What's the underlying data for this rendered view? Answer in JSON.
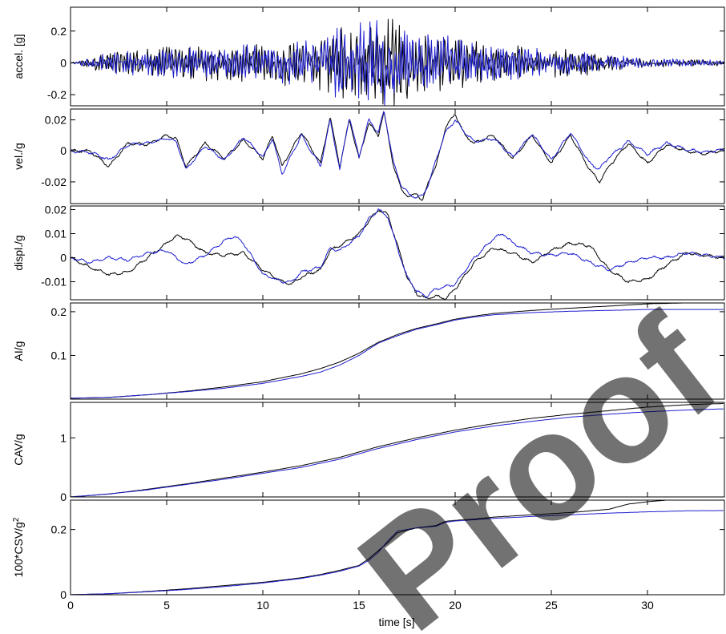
{
  "watermark": "Proof of SI",
  "colors": {
    "record": "#000000",
    "simulated": "#1f1fd0",
    "axes": "#000000"
  },
  "chart_data": {
    "type": "line",
    "shared_x": {
      "label": "time [s]",
      "range": [
        0,
        34
      ],
      "ticks": [
        0,
        5,
        10,
        15,
        20,
        25,
        30
      ],
      "tick_labels": [
        "0",
        "5",
        "10",
        "15",
        "20",
        "25",
        "30"
      ]
    },
    "grid": false,
    "legend": "none",
    "panels": [
      {
        "id": "accel",
        "ylabel": "accel. [g]",
        "ylim": [
          -0.27,
          0.35
        ],
        "yticks": [
          -0.2,
          0,
          0.2
        ],
        "ytick_labels": [
          "-0.2",
          "0",
          "0.2"
        ],
        "kind": "oscillatory",
        "series": [
          {
            "color_key": "record",
            "x": [
              0,
              2,
              4,
              6,
              8,
              10,
              12,
              14,
              15,
              16,
              16.5,
              17,
              18,
              20,
              22,
              24,
              26,
              28,
              30,
              32,
              34
            ],
            "y": [
              0,
              0.08,
              0.1,
              0.12,
              0.12,
              0.15,
              0.16,
              0.25,
              0.28,
              0.3,
              0.35,
              0.3,
              0.22,
              0.2,
              0.15,
              0.12,
              0.1,
              0.06,
              0.04,
              0.03,
              0.02
            ]
          },
          {
            "color_key": "simulated",
            "x": [
              0,
              2,
              4,
              6,
              8,
              10,
              12,
              14,
              15,
              16,
              16.5,
              17,
              18,
              20,
              22,
              24,
              26,
              28,
              30,
              32,
              34
            ],
            "y": [
              0,
              0.07,
              0.09,
              0.11,
              0.11,
              0.14,
              0.16,
              0.24,
              0.3,
              0.33,
              0.3,
              0.27,
              0.2,
              0.18,
              0.14,
              0.11,
              0.09,
              0.05,
              0.04,
              0.03,
              0.02
            ]
          }
        ]
      },
      {
        "id": "vel",
        "ylabel": "vel./g",
        "ylim": [
          -0.034,
          0.027
        ],
        "yticks": [
          -0.02,
          0,
          0.02
        ],
        "ytick_labels": [
          "-0.02",
          "0",
          "0.02"
        ],
        "kind": "smooth",
        "series": [
          {
            "color_key": "record",
            "x": [
              0,
              1,
              1.5,
              2,
              3,
              4,
              5,
              5.5,
              6,
              7,
              8,
              9,
              10,
              10.5,
              11,
              12,
              13,
              13.5,
              14,
              14.5,
              15,
              15.5,
              16,
              16.3,
              16.8,
              17.2,
              17.6,
              18,
              18.3,
              18.6,
              19,
              19.5,
              20,
              20.5,
              21,
              22,
              23,
              24,
              25,
              26,
              27,
              27.5,
              28,
              29,
              30,
              31,
              32,
              33,
              34
            ],
            "y": [
              0,
              0,
              -0.005,
              -0.01,
              0.005,
              0.004,
              0.01,
              0.008,
              -0.01,
              0.005,
              -0.005,
              0.007,
              -0.005,
              0.01,
              -0.01,
              0.012,
              -0.008,
              0.022,
              -0.01,
              0.02,
              -0.005,
              0.018,
              0.01,
              0.025,
              -0.01,
              -0.025,
              -0.03,
              -0.027,
              -0.033,
              -0.02,
              -0.01,
              0.015,
              0.024,
              0.01,
              0.005,
              0.01,
              -0.005,
              0.01,
              -0.008,
              0.01,
              -0.012,
              -0.02,
              -0.01,
              0.005,
              -0.008,
              0.004,
              0,
              -0.002,
              0.001
            ]
          },
          {
            "color_key": "simulated",
            "x": [
              0,
              1,
              1.5,
              2,
              3,
              4,
              5,
              5.5,
              6,
              7,
              8,
              9,
              10,
              10.5,
              11,
              12,
              13,
              13.5,
              14,
              14.5,
              15,
              15.5,
              16,
              16.3,
              16.8,
              17.2,
              17.6,
              18,
              18.3,
              18.6,
              19,
              19.5,
              20,
              20.5,
              21,
              22,
              23,
              24,
              25,
              26,
              27,
              27.5,
              28,
              29,
              30,
              31,
              32,
              33,
              34
            ],
            "y": [
              0,
              -0.001,
              -0.003,
              -0.006,
              0.004,
              0.005,
              0.008,
              0.006,
              -0.012,
              0.003,
              -0.006,
              0.009,
              -0.004,
              0.008,
              -0.015,
              0.01,
              -0.01,
              0.02,
              -0.012,
              0.022,
              -0.004,
              0.02,
              0.012,
              0.026,
              -0.008,
              -0.022,
              -0.028,
              -0.03,
              -0.029,
              -0.022,
              -0.006,
              0.012,
              0.02,
              0.012,
              0.006,
              0.008,
              -0.004,
              0.011,
              -0.006,
              0.012,
              -0.008,
              -0.012,
              -0.004,
              0.006,
              -0.002,
              0.005,
              0.001,
              -0.001,
              0.001
            ]
          }
        ]
      },
      {
        "id": "displ",
        "ylabel": "displ./g",
        "ylim": [
          -0.0175,
          0.0215
        ],
        "yticks": [
          -0.01,
          0,
          0.01,
          0.02
        ],
        "ytick_labels": [
          "-0.01",
          "0",
          "0.01",
          "0.02"
        ],
        "kind": "smooth",
        "series": [
          {
            "color_key": "record",
            "x": [
              0,
              1,
              2,
              3,
              4,
              5,
              5.5,
              6,
              7,
              8,
              9,
              10,
              11,
              11.5,
              12,
              13,
              13.5,
              14,
              15,
              15.5,
              16,
              16.5,
              17,
              17.5,
              18,
              18.5,
              19,
              19.5,
              20,
              21,
              22,
              23,
              24,
              25,
              26,
              27,
              28,
              29,
              30,
              31,
              32,
              33,
              34
            ],
            "y": [
              0,
              -0.004,
              -0.007,
              -0.006,
              0,
              0.006,
              0.009,
              0.008,
              0.002,
              0.001,
              0.002,
              -0.005,
              -0.01,
              -0.011,
              -0.008,
              -0.005,
              0.003,
              0.005,
              0.01,
              0.015,
              0.02,
              0.018,
              0.005,
              -0.008,
              -0.015,
              -0.017,
              -0.016,
              -0.017,
              -0.013,
              -0.002,
              0.004,
              0.002,
              -0.002,
              0.003,
              0.006,
              0.005,
              -0.005,
              -0.01,
              -0.009,
              -0.003,
              0.002,
              0.001,
              0
            ]
          },
          {
            "color_key": "simulated",
            "x": [
              0,
              1,
              2,
              3,
              4,
              5,
              6,
              7,
              8,
              8.5,
              9,
              10,
              11,
              11.5,
              12,
              13,
              13.5,
              14,
              15,
              15.5,
              16,
              16.5,
              17,
              17.5,
              18,
              18.5,
              19,
              20,
              21,
              22,
              22.5,
              23,
              24,
              25,
              26,
              27,
              28,
              29,
              30,
              31,
              32,
              33,
              34
            ],
            "y": [
              0,
              -0.002,
              0,
              -0.001,
              0.002,
              0.003,
              -0.003,
              0.001,
              0.007,
              0.009,
              0.006,
              -0.007,
              -0.01,
              -0.01,
              -0.006,
              -0.004,
              0.004,
              0.003,
              0.009,
              0.016,
              0.02,
              0.017,
              0.004,
              -0.008,
              -0.014,
              -0.016,
              -0.013,
              -0.011,
              0,
              0.008,
              0.01,
              0.006,
              0.002,
              0.001,
              0.002,
              -0.002,
              -0.005,
              -0.002,
              0,
              0,
              0.002,
              0.001,
              0
            ]
          }
        ]
      },
      {
        "id": "ai",
        "ylabel": "AI/g",
        "ylim": [
          0,
          0.22
        ],
        "yticks": [
          0.1,
          0.2
        ],
        "ytick_labels": [
          "0.1",
          "0.2"
        ],
        "kind": "cumulative",
        "series": [
          {
            "color_key": "record",
            "x": [
              0,
              2,
              4,
              6,
              8,
              10,
              12,
              13,
              14,
              15,
              16,
              17,
              18,
              19,
              20,
              21,
              22,
              24,
              26,
              28,
              30,
              32,
              34
            ],
            "y": [
              0.002,
              0.004,
              0.01,
              0.018,
              0.028,
              0.04,
              0.058,
              0.07,
              0.085,
              0.105,
              0.13,
              0.148,
              0.162,
              0.172,
              0.183,
              0.19,
              0.196,
              0.203,
              0.208,
              0.213,
              0.218,
              0.22,
              0.22
            ]
          },
          {
            "color_key": "simulated",
            "x": [
              0,
              2,
              4,
              6,
              8,
              10,
              12,
              13,
              14,
              15,
              16,
              17,
              18,
              19,
              20,
              21,
              22,
              24,
              26,
              28,
              30,
              32,
              34
            ],
            "y": [
              0.002,
              0.004,
              0.01,
              0.017,
              0.025,
              0.036,
              0.052,
              0.062,
              0.078,
              0.1,
              0.128,
              0.145,
              0.16,
              0.17,
              0.181,
              0.188,
              0.193,
              0.198,
              0.201,
              0.203,
              0.205,
              0.205,
              0.205
            ]
          }
        ]
      },
      {
        "id": "cav",
        "ylabel": "CAV/g",
        "ylim": [
          0,
          1.6
        ],
        "yticks": [
          0,
          1
        ],
        "ytick_labels": [
          "0",
          "1"
        ],
        "kind": "cumulative",
        "series": [
          {
            "color_key": "record",
            "x": [
              0,
              2,
              4,
              6,
              8,
              10,
              12,
              14,
              16,
              18,
              20,
              22,
              24,
              26,
              28,
              30,
              32,
              34
            ],
            "y": [
              0,
              0.05,
              0.13,
              0.22,
              0.32,
              0.42,
              0.53,
              0.67,
              0.85,
              1.0,
              1.13,
              1.24,
              1.33,
              1.4,
              1.46,
              1.52,
              1.56,
              1.58
            ]
          },
          {
            "color_key": "simulated",
            "x": [
              0,
              2,
              4,
              6,
              8,
              10,
              12,
              14,
              16,
              18,
              20,
              22,
              24,
              26,
              28,
              30,
              32,
              34
            ],
            "y": [
              0,
              0.05,
              0.12,
              0.21,
              0.3,
              0.4,
              0.5,
              0.64,
              0.82,
              0.97,
              1.1,
              1.2,
              1.28,
              1.35,
              1.4,
              1.44,
              1.47,
              1.49
            ]
          }
        ]
      },
      {
        "id": "csv",
        "ylabel": "100*CSV/g",
        "ylabel_superscript": "2",
        "ylim": [
          0,
          0.29
        ],
        "yticks": [
          0,
          0.2
        ],
        "ytick_labels": [
          "0",
          "0.2"
        ],
        "kind": "cumulative",
        "series": [
          {
            "color_key": "record",
            "x": [
              0,
              2,
              4,
              6,
              8,
              10,
              12,
              13,
              14,
              15,
              15.5,
              16,
              16.5,
              17,
              18,
              19,
              19.5,
              20,
              21,
              22,
              24,
              26,
              28,
              29,
              30,
              31
            ],
            "y": [
              0,
              0.003,
              0.01,
              0.018,
              0.028,
              0.038,
              0.052,
              0.062,
              0.075,
              0.09,
              0.11,
              0.135,
              0.16,
              0.19,
              0.205,
              0.212,
              0.225,
              0.228,
              0.232,
              0.238,
              0.245,
              0.252,
              0.262,
              0.278,
              0.285,
              0.29
            ]
          },
          {
            "color_key": "simulated",
            "x": [
              0,
              2,
              4,
              6,
              8,
              10,
              12,
              13,
              14,
              15,
              15.5,
              16,
              16.5,
              17,
              18,
              19,
              19.5,
              20,
              21,
              22,
              24,
              26,
              28,
              30,
              32,
              34
            ],
            "y": [
              0,
              0.003,
              0.009,
              0.016,
              0.025,
              0.036,
              0.05,
              0.06,
              0.072,
              0.088,
              0.105,
              0.13,
              0.165,
              0.195,
              0.205,
              0.21,
              0.222,
              0.226,
              0.23,
              0.234,
              0.24,
              0.245,
              0.25,
              0.254,
              0.257,
              0.258
            ]
          }
        ]
      }
    ]
  }
}
